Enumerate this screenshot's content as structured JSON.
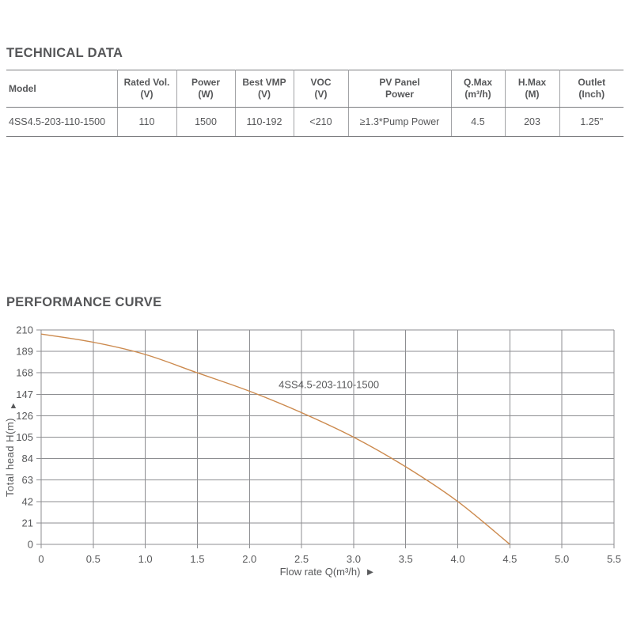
{
  "page": {
    "background": "#ffffff",
    "text_color": "#58595b"
  },
  "technical_data": {
    "title": "TECHNICAL DATA",
    "table": {
      "columns": [
        {
          "id": "model",
          "lines": [
            "Model"
          ]
        },
        {
          "id": "rated_vol",
          "lines": [
            "Rated Vol.",
            "(V)"
          ]
        },
        {
          "id": "power",
          "lines": [
            "Power",
            "(W)"
          ]
        },
        {
          "id": "best_vmp",
          "lines": [
            "Best VMP",
            "(V)"
          ]
        },
        {
          "id": "voc",
          "lines": [
            "VOC",
            "(V)"
          ]
        },
        {
          "id": "pv_panel_power",
          "lines": [
            "PV Panel",
            "Power"
          ]
        },
        {
          "id": "q_max",
          "lines": [
            "Q.Max",
            "(m³/h)"
          ]
        },
        {
          "id": "h_max",
          "lines": [
            "H.Max",
            "(M)"
          ]
        },
        {
          "id": "outlet",
          "lines": [
            "Outlet",
            "(Inch)"
          ]
        }
      ],
      "row": [
        "4SS4.5-203-110-1500",
        "110",
        "1500",
        "110-192",
        "<210",
        "≥1.3*Pump Power",
        "4.5",
        "203",
        "1.25\""
      ]
    }
  },
  "performance": {
    "title": "PERFORMANCE CURVE"
  },
  "chart_data": {
    "type": "line",
    "title": "",
    "xlabel": "Flow rate Q(m³/h)",
    "x_arrow_icon": "►",
    "ylabel": "Total head H(m)",
    "y_arrow_icon": "▲",
    "xlim": [
      0,
      5.5
    ],
    "ylim": [
      0,
      210
    ],
    "x_ticks": [
      "0",
      "0.5",
      "1.0",
      "1.5",
      "2.0",
      "2.5",
      "3.0",
      "3.5",
      "4.0",
      "4.5",
      "5.0",
      "5.5"
    ],
    "y_ticks": [
      0,
      21,
      42,
      63,
      84,
      105,
      126,
      147,
      168,
      189,
      210
    ],
    "grid": true,
    "grid_color": "#8d8e91",
    "series": [
      {
        "name": "4SS4.5-203-110-1500",
        "color": "#cc8a4e",
        "points": [
          [
            0,
            206
          ],
          [
            0.5,
            198
          ],
          [
            1.0,
            186
          ],
          [
            1.5,
            168
          ],
          [
            2.0,
            150
          ],
          [
            2.5,
            129
          ],
          [
            3.0,
            105
          ],
          [
            3.5,
            76
          ],
          [
            4.0,
            42
          ],
          [
            4.5,
            0
          ]
        ],
        "label_pos": {
          "x": 2.28,
          "y": 153
        }
      }
    ]
  }
}
